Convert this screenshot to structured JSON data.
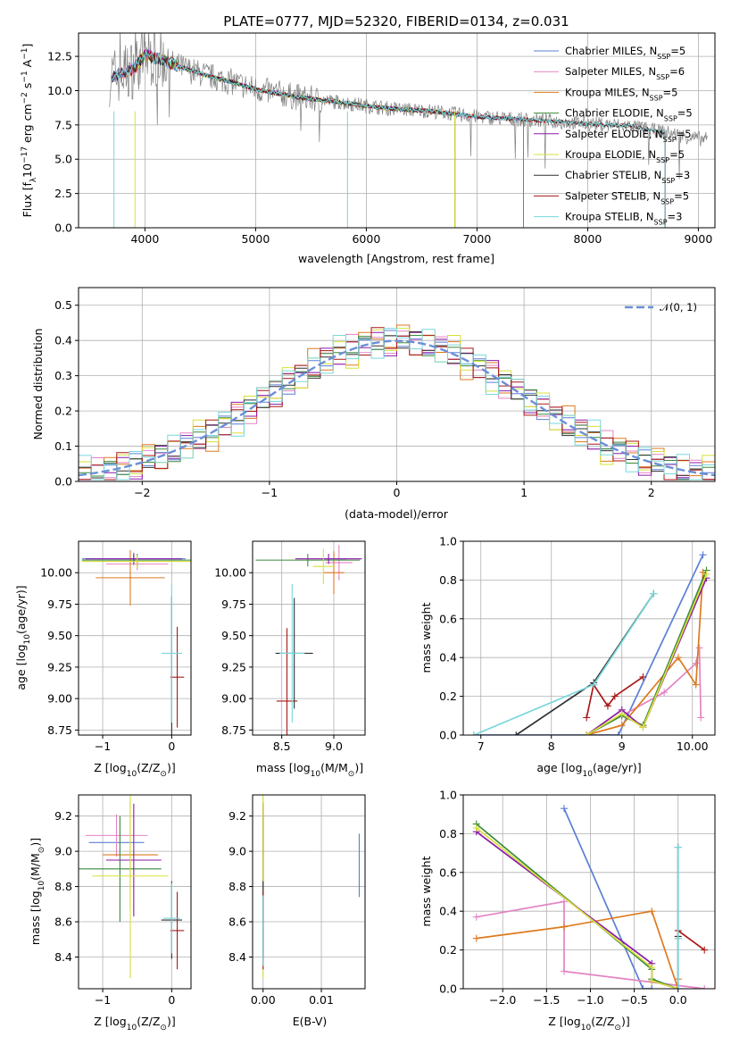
{
  "colors": {
    "Chabrier MILES": "#5b7fd6",
    "Salpeter MILES": "#e383c4",
    "Kroupa MILES": "#dd7a1f",
    "Chabrier ELODIE": "#3a8a3a",
    "Salpeter ELODIE": "#8a1aa8",
    "Kroupa ELODIE": "#d8e03a",
    "Chabrier STELIB": "#303030",
    "Salpeter STELIB": "#a81818",
    "Kroupa STELIB": "#78d8dc",
    "data": "#808080",
    "gauss": "#6a8fd8"
  },
  "chart_data": [
    {
      "id": "spectrum",
      "type": "line",
      "title": "PLATE=0777, MJD=52320, FIBERID=0134, z=0.031",
      "xlabel": "wavelength [Angstrom, rest frame]",
      "ylabel_parts": [
        "Flux [f",
        "λ",
        "10",
        "−17",
        " erg cm",
        "−2",
        " s",
        "−1",
        " A",
        "−1",
        "]"
      ],
      "xlim": [
        3400,
        9150
      ],
      "ylim": [
        0,
        14.2
      ],
      "xticks": [
        4000,
        5000,
        6000,
        7000,
        8000,
        9000
      ],
      "yticks": [
        0.0,
        2.5,
        5.0,
        7.5,
        10.0,
        12.5
      ],
      "legend_position": "top-right",
      "legend": [
        {
          "name": "Chabrier MILES",
          "nssp": "5"
        },
        {
          "name": "Salpeter MILES",
          "nssp": "6"
        },
        {
          "name": "Kroupa MILES",
          "nssp": "5"
        },
        {
          "name": "Chabrier ELODIE",
          "nssp": "5"
        },
        {
          "name": "Salpeter ELODIE",
          "nssp": "5"
        },
        {
          "name": "Kroupa ELODIE",
          "nssp": "5"
        },
        {
          "name": "Chabrier STELIB",
          "nssp": "3"
        },
        {
          "name": "Salpeter STELIB",
          "nssp": "5"
        },
        {
          "name": "Kroupa STELIB",
          "nssp": "3"
        }
      ],
      "legend_fmt": {
        "pre": ", N",
        "sub": "SSP",
        "post": "="
      },
      "continuum": [
        [
          3700,
          11.0
        ],
        [
          3800,
          11.3
        ],
        [
          3900,
          11.6
        ],
        [
          4000,
          12.6
        ],
        [
          4200,
          12.1
        ],
        [
          4400,
          11.5
        ],
        [
          4600,
          11.0
        ],
        [
          4800,
          10.6
        ],
        [
          5000,
          10.1
        ],
        [
          5200,
          9.8
        ],
        [
          5400,
          9.5
        ],
        [
          5600,
          9.3
        ],
        [
          5800,
          9.1
        ],
        [
          6000,
          8.9
        ],
        [
          6200,
          8.7
        ],
        [
          6400,
          8.6
        ],
        [
          6600,
          8.5
        ],
        [
          6800,
          8.3
        ],
        [
          7000,
          8.1
        ],
        [
          7200,
          8.0
        ],
        [
          7400,
          7.9
        ],
        [
          7600,
          7.8
        ],
        [
          7800,
          7.7
        ],
        [
          8000,
          7.6
        ],
        [
          8200,
          7.5
        ],
        [
          8400,
          7.4
        ],
        [
          8600,
          7.1
        ],
        [
          8800,
          6.8
        ],
        [
          9000,
          6.5
        ],
        [
          9100,
          6.4
        ]
      ],
      "model_ranges": {
        "Chabrier MILES": [
          3700,
          7420
        ],
        "Salpeter MILES": [
          3700,
          7420
        ],
        "Kroupa MILES": [
          3700,
          7420
        ],
        "Chabrier ELODIE": [
          3900,
          6800
        ],
        "Salpeter ELODIE": [
          3900,
          6800
        ],
        "Kroupa ELODIE": [
          3900,
          6800
        ],
        "Chabrier STELIB": [
          3700,
          8700
        ],
        "Salpeter STELIB": [
          3700,
          8700
        ],
        "Kroupa STELIB": [
          3700,
          8700
        ]
      }
    },
    {
      "id": "residuals",
      "type": "histogram",
      "xlabel": "(data-model)/error",
      "ylabel": "Normed distribution",
      "xlim": [
        -2.5,
        2.5
      ],
      "ylim": [
        0,
        0.55
      ],
      "xticks": [
        -2,
        -1,
        0,
        1,
        2
      ],
      "yticks": [
        0.0,
        0.1,
        0.2,
        0.3,
        0.4,
        0.5
      ],
      "bin_width": 0.1,
      "legend_position": "top-right",
      "legend": [
        {
          "name": "N(0,1)",
          "label": "𝒩(0, 1)"
        }
      ],
      "jitter": [
        0.02,
        -0.01,
        0.015,
        -0.02,
        0.03,
        -0.015,
        0.01,
        -0.025,
        0.02,
        0.005,
        -0.01,
        0.025,
        -0.02,
        0.015,
        -0.005,
        0.02,
        -0.03,
        0.01,
        0.02,
        -0.015
      ]
    },
    {
      "id": "age_vs_Z",
      "type": "errorbar",
      "xlabel_parts": [
        "Z [log",
        "10",
        "(Z/Z",
        "⊙",
        ")]"
      ],
      "ylabel_parts": [
        "age  [log",
        "10",
        "(age/yr)]"
      ],
      "xlim": [
        -1.35,
        0.28
      ],
      "ylim": [
        8.71,
        10.25
      ],
      "xticks": [
        -1,
        0
      ],
      "yticks": [
        8.75,
        9.0,
        9.25,
        9.5,
        9.75,
        10.0
      ],
      "points": [
        {
          "model": "Chabrier MILES",
          "x": -0.55,
          "xerr": 0.75,
          "y": 10.11,
          "yerr": 0.05
        },
        {
          "model": "Salpeter MILES",
          "x": -0.5,
          "xerr": 0.45,
          "y": 10.07,
          "yerr": 0.05
        },
        {
          "model": "Kroupa MILES",
          "x": -0.6,
          "xerr": 0.5,
          "y": 9.96,
          "yerr": 0.22
        },
        {
          "model": "Chabrier ELODIE",
          "x": -0.5,
          "xerr": 0.8,
          "y": 10.1,
          "yerr": 0.05
        },
        {
          "model": "Salpeter ELODIE",
          "x": -0.55,
          "xerr": 0.7,
          "y": 10.11,
          "yerr": 0.04
        },
        {
          "model": "Kroupa ELODIE",
          "x": -0.5,
          "xerr": 0.8,
          "y": 10.09,
          "yerr": 0.05
        },
        {
          "model": "Chabrier STELIB",
          "x": 0.0,
          "xerr": 0.0,
          "y": 9.26,
          "yerr": 0.55
        },
        {
          "model": "Salpeter STELIB",
          "x": 0.08,
          "xerr": 0.1,
          "y": 9.17,
          "yerr": 0.4
        },
        {
          "model": "Kroupa STELIB",
          "x": 0.0,
          "xerr": 0.15,
          "y": 9.36,
          "yerr": 0.55
        }
      ]
    },
    {
      "id": "age_vs_mass",
      "type": "errorbar",
      "xlabel_parts": [
        "mass [log",
        "10",
        "(M/M",
        "⊙",
        ")]"
      ],
      "xlim": [
        8.22,
        9.3
      ],
      "ylim": [
        8.71,
        10.25
      ],
      "xticks": [
        8.5,
        9.0
      ],
      "yticks": [
        8.75,
        9.0,
        9.25,
        9.5,
        9.75,
        10.0
      ],
      "points": [
        {
          "model": "Chabrier MILES",
          "x": 9.0,
          "xerr": 0.12,
          "y": 10.11,
          "yerr": 0.05
        },
        {
          "model": "Salpeter MILES",
          "x": 9.05,
          "xerr": 0.13,
          "y": 10.08,
          "yerr": 0.14
        },
        {
          "model": "Kroupa MILES",
          "x": 9.0,
          "xerr": 0.1,
          "y": 10.0,
          "yerr": 0.17
        },
        {
          "model": "Chabrier ELODIE",
          "x": 8.75,
          "xerr": 0.5,
          "y": 10.1,
          "yerr": 0.05
        },
        {
          "model": "Salpeter ELODIE",
          "x": 8.95,
          "xerr": 0.32,
          "y": 10.11,
          "yerr": 0.04
        },
        {
          "model": "Kroupa ELODIE",
          "x": 8.9,
          "xerr": 0.1,
          "y": 10.05,
          "yerr": 0.14
        },
        {
          "model": "Chabrier STELIB",
          "x": 8.62,
          "xerr": 0.18,
          "y": 9.36,
          "yerr": 0.44
        },
        {
          "model": "Salpeter STELIB",
          "x": 8.55,
          "xerr": 0.1,
          "y": 8.98,
          "yerr": 0.58
        },
        {
          "model": "Kroupa STELIB",
          "x": 8.6,
          "xerr": 0.12,
          "y": 9.36,
          "yerr": 0.55
        }
      ]
    },
    {
      "id": "massweight_vs_age",
      "type": "line",
      "xlabel_parts": [
        "age  [log",
        "10",
        "(age/yr)]"
      ],
      "ylabel": "mass weight",
      "xlim": [
        6.75,
        10.32
      ],
      "ylim": [
        0,
        1
      ],
      "xticks": [
        7,
        8,
        9,
        10
      ],
      "yticks": [
        0.0,
        0.2,
        0.4,
        0.6,
        0.8,
        1.0
      ],
      "series": [
        {
          "model": "Chabrier MILES",
          "x": [
            6.9,
            8.5,
            8.95,
            10.15
          ],
          "y": [
            0.0,
            0.0,
            0.0,
            0.93
          ]
        },
        {
          "model": "Salpeter MILES",
          "x": [
            8.5,
            9.0,
            9.6,
            10.05,
            10.1,
            10.12
          ],
          "y": [
            0.0,
            0.1,
            0.22,
            0.37,
            0.45,
            0.09
          ]
        },
        {
          "model": "Kroupa MILES",
          "x": [
            8.5,
            9.0,
            9.8,
            10.05,
            10.15
          ],
          "y": [
            0.0,
            0.05,
            0.4,
            0.26,
            0.84
          ]
        },
        {
          "model": "Chabrier ELODIE",
          "x": [
            8.5,
            9.0,
            9.3,
            10.2
          ],
          "y": [
            0.0,
            0.1,
            0.05,
            0.85
          ]
        },
        {
          "model": "Salpeter ELODIE",
          "x": [
            8.5,
            9.0,
            9.3,
            10.2
          ],
          "y": [
            0.0,
            0.13,
            0.04,
            0.81
          ]
        },
        {
          "model": "Kroupa ELODIE",
          "x": [
            8.5,
            9.0,
            9.3,
            10.2
          ],
          "y": [
            0.0,
            0.11,
            0.04,
            0.83
          ]
        },
        {
          "model": "Chabrier STELIB",
          "x": [
            7.5,
            8.6,
            9.45
          ],
          "y": [
            0.0,
            0.27,
            0.73
          ]
        },
        {
          "model": "Salpeter STELIB",
          "x": [
            8.5,
            8.6,
            8.8,
            8.9,
            9.3
          ],
          "y": [
            0.09,
            0.26,
            0.15,
            0.2,
            0.3
          ]
        },
        {
          "model": "Kroupa STELIB",
          "x": [
            6.9,
            8.6,
            9.45
          ],
          "y": [
            0.0,
            0.26,
            0.73
          ]
        }
      ]
    },
    {
      "id": "mass_vs_Z",
      "type": "errorbar",
      "xlabel_parts": [
        "Z [log",
        "10",
        "(Z/Z",
        "⊙",
        ")]"
      ],
      "ylabel_parts": [
        "mass [log",
        "10",
        "(M/M",
        "⊙",
        ")]"
      ],
      "xlim": [
        -1.35,
        0.28
      ],
      "ylim": [
        8.22,
        9.32
      ],
      "xticks": [
        -1,
        0
      ],
      "yticks": [
        8.4,
        8.6,
        8.8,
        9.0,
        9.2
      ],
      "points": [
        {
          "model": "Chabrier MILES",
          "x": -0.8,
          "xerr": 0.4,
          "y": 9.05,
          "yerr": 0.0
        },
        {
          "model": "Salpeter MILES",
          "x": -0.8,
          "xerr": 0.45,
          "y": 9.09,
          "yerr": 0.12
        },
        {
          "model": "Kroupa MILES",
          "x": -0.6,
          "xerr": 0.4,
          "y": 8.98,
          "yerr": 0.3
        },
        {
          "model": "Chabrier ELODIE",
          "x": -0.75,
          "xerr": 0.6,
          "y": 8.9,
          "yerr": 0.3
        },
        {
          "model": "Salpeter ELODIE",
          "x": -0.55,
          "xerr": 0.4,
          "y": 8.95,
          "yerr": 0.32
        },
        {
          "model": "Kroupa ELODIE",
          "x": -0.6,
          "xerr": 0.55,
          "y": 8.86,
          "yerr": 0.58
        },
        {
          "model": "Chabrier STELIB",
          "x": 0.0,
          "xerr": 0.15,
          "y": 8.61,
          "yerr": 0.22
        },
        {
          "model": "Salpeter STELIB",
          "x": 0.08,
          "xerr": 0.1,
          "y": 8.55,
          "yerr": 0.22
        },
        {
          "model": "Kroupa STELIB",
          "x": 0.0,
          "xerr": 0.12,
          "y": 8.62,
          "yerr": 0.2
        }
      ]
    },
    {
      "id": "mass_vs_EBV",
      "type": "errorbar",
      "xlabel": "E(B-V)",
      "xlim": [
        -0.0018,
        0.0175
      ],
      "ylim": [
        8.22,
        9.32
      ],
      "xticks": [
        0.0,
        0.01
      ],
      "xtick_labels": [
        "0.00",
        "0.01"
      ],
      "yticks": [
        8.4,
        8.6,
        8.8,
        9.0,
        9.2
      ],
      "points": [
        {
          "model": "Chabrier MILES",
          "x": 0.0165,
          "xerr": 0,
          "y": 8.92,
          "yerr": 0.18
        },
        {
          "model": "Salpeter MILES",
          "x": 0.0,
          "xerr": 0,
          "y": 9.1,
          "yerr": 0.12
        },
        {
          "model": "Kroupa MILES",
          "x": 0.0,
          "xerr": 0,
          "y": 8.98,
          "yerr": 0.3
        },
        {
          "model": "Chabrier ELODIE",
          "x": 0.0,
          "xerr": 0,
          "y": 8.9,
          "yerr": 0.3
        },
        {
          "model": "Salpeter ELODIE",
          "x": 0.0,
          "xerr": 0,
          "y": 8.95,
          "yerr": 0.32
        },
        {
          "model": "Kroupa ELODIE",
          "x": 0.0,
          "xerr": 0,
          "y": 8.86,
          "yerr": 0.58
        },
        {
          "model": "Chabrier STELIB",
          "x": 0.0,
          "xerr": 0,
          "y": 8.61,
          "yerr": 0.22
        },
        {
          "model": "Salpeter STELIB",
          "x": 0.0,
          "xerr": 0,
          "y": 8.55,
          "yerr": 0.22
        },
        {
          "model": "Kroupa STELIB",
          "x": 0.0,
          "xerr": 0,
          "y": 8.55,
          "yerr": 0.2
        }
      ]
    },
    {
      "id": "massweight_vs_Z",
      "type": "line",
      "xlabel_parts": [
        "Z [log",
        "10",
        "(Z/Z",
        "⊙",
        ")]"
      ],
      "ylabel": "mass weight",
      "xlim": [
        -2.45,
        0.42
      ],
      "ylim": [
        0,
        1
      ],
      "xticks": [
        -2.0,
        -1.5,
        -1.0,
        -0.5,
        0.0
      ],
      "xtick_labels": [
        "−2.0",
        "−1.5",
        "−1.0",
        "−0.5",
        "0.0"
      ],
      "yticks": [
        0.0,
        0.2,
        0.4,
        0.6,
        0.8,
        1.0
      ],
      "series": [
        {
          "model": "Chabrier MILES",
          "x": [
            -1.3,
            -0.4,
            -0.3,
            -0.3
          ],
          "y": [
            0.93,
            0.0,
            0.0,
            0.0
          ]
        },
        {
          "model": "Salpeter MILES",
          "x": [
            -2.3,
            -1.3,
            -1.3,
            0.3
          ],
          "y": [
            0.37,
            0.45,
            0.09,
            0.0
          ]
        },
        {
          "model": "Kroupa MILES",
          "x": [
            -2.3,
            -1.3,
            -0.3,
            0.0,
            0.0
          ],
          "y": [
            0.26,
            0.32,
            0.4,
            0.0,
            0.05
          ]
        },
        {
          "model": "Chabrier ELODIE",
          "x": [
            -2.3,
            -0.3,
            -0.3,
            0.0
          ],
          "y": [
            0.85,
            0.1,
            0.05,
            0.0
          ]
        },
        {
          "model": "Salpeter ELODIE",
          "x": [
            -2.3,
            -0.3,
            -0.3,
            0.0
          ],
          "y": [
            0.81,
            0.13,
            0.04,
            0.0
          ]
        },
        {
          "model": "Kroupa ELODIE",
          "x": [
            -2.3,
            -0.3,
            -0.3,
            0.0
          ],
          "y": [
            0.83,
            0.11,
            0.04,
            0.0
          ]
        },
        {
          "model": "Chabrier STELIB",
          "x": [
            0.0,
            0.0,
            0.0
          ],
          "y": [
            0.27,
            0.0,
            0.73
          ]
        },
        {
          "model": "Salpeter STELIB",
          "x": [
            0.0,
            0.0,
            0.3
          ],
          "y": [
            0.26,
            0.3,
            0.2
          ]
        },
        {
          "model": "Kroupa STELIB",
          "x": [
            0.0,
            0.0,
            0.0
          ],
          "y": [
            0.0,
            0.26,
            0.73
          ]
        }
      ]
    }
  ]
}
